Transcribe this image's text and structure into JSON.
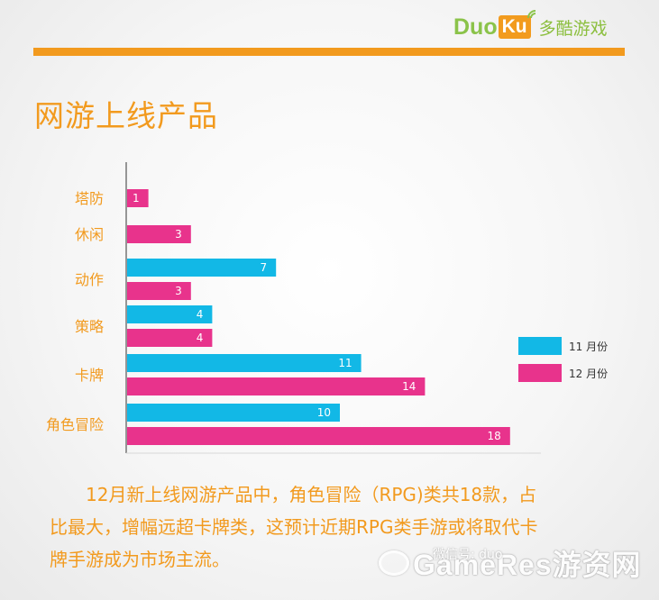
{
  "header": {
    "logo_latin_main": "Duo",
    "logo_latin_badge": "Ku",
    "logo_chinese": "多酷游戏"
  },
  "title": "网游上线产品",
  "chart_data": {
    "type": "bar",
    "orientation": "horizontal",
    "title": "网游上线产品",
    "categories": [
      "塔防",
      "休闲",
      "动作",
      "策略",
      "卡牌",
      "角色冒险"
    ],
    "series": [
      {
        "name": "11 月份",
        "color": "#12b8e6",
        "values": [
          null,
          null,
          7,
          4,
          11,
          10
        ]
      },
      {
        "name": "12 月份",
        "color": "#e8338c",
        "values": [
          1,
          3,
          3,
          4,
          14,
          18
        ]
      }
    ],
    "xlim": [
      0,
      20
    ],
    "legend_position": "right",
    "grid": false
  },
  "summary": {
    "line1": "12月新上线网游产品中，角色冒险（RPG)类共18款，占",
    "line2": "比最大，增幅远超卡牌类，这预计近期RPG类手游或将取代卡",
    "line3": "牌手游成为市场主流。"
  },
  "watermark": {
    "text": "GameRes游资网",
    "small_text": "微信号: duo"
  }
}
